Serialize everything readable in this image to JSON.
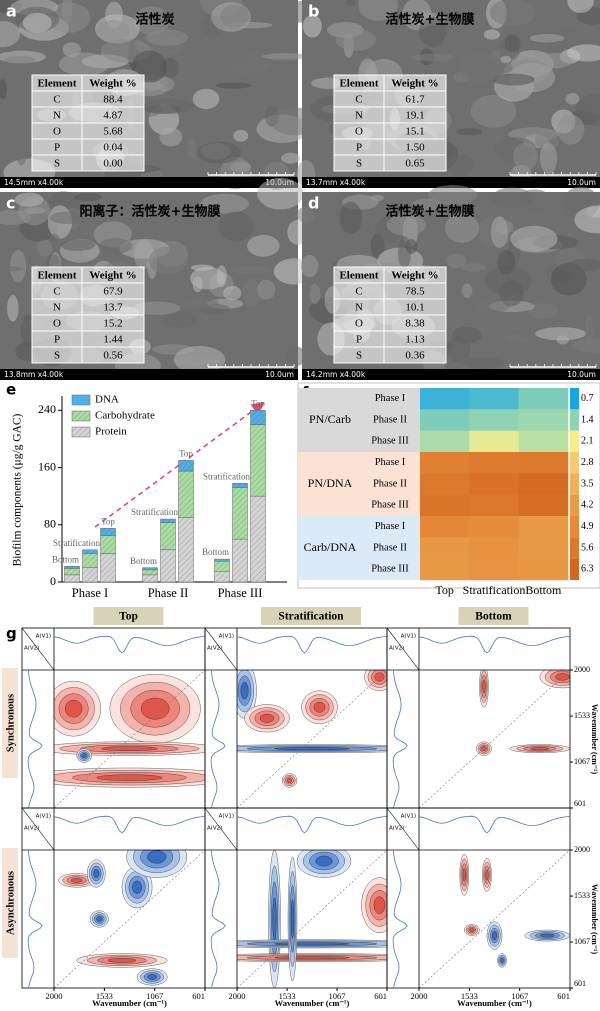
{
  "sem_panels": [
    {
      "label": "a",
      "title": "活性炭",
      "table": {
        "header": [
          "Element",
          "Weight %"
        ],
        "rows": [
          [
            "C",
            "88.4"
          ],
          [
            "N",
            "4.87"
          ],
          [
            "O",
            "5.68"
          ],
          [
            "P",
            "0.04"
          ],
          [
            "S",
            "0.00"
          ]
        ]
      },
      "info": "14.5mm x4.00k",
      "scale": "10.0um"
    },
    {
      "label": "b",
      "title": "活性炭+生物膜",
      "table": {
        "header": [
          "Element",
          "Weight %"
        ],
        "rows": [
          [
            "C",
            "61.7"
          ],
          [
            "N",
            "19.1"
          ],
          [
            "O",
            "15.1"
          ],
          [
            "P",
            "1.50"
          ],
          [
            "S",
            "0.65"
          ]
        ]
      },
      "info": "13.7mm x4.00k",
      "scale": "10.0um"
    },
    {
      "label": "c",
      "title": "阳离子：活性炭+生物膜",
      "table": {
        "header": [
          "Element",
          "Weight %"
        ],
        "rows": [
          [
            "C",
            "67.9"
          ],
          [
            "N",
            "13.7"
          ],
          [
            "O",
            "15.2"
          ],
          [
            "P",
            "1.44"
          ],
          [
            "S",
            "0.56"
          ]
        ]
      },
      "info": "13.8mm x4.00k",
      "scale": "10.0um"
    },
    {
      "label": "d",
      "title": "活性炭+生物膜",
      "table": {
        "header": [
          "Element",
          "Weight %"
        ],
        "rows": [
          [
            "C",
            "78.5"
          ],
          [
            "N",
            "10.1"
          ],
          [
            "O",
            "8.38"
          ],
          [
            "P",
            "1.13"
          ],
          [
            "S",
            "0.36"
          ]
        ]
      },
      "info": "14.2mm x4.00k",
      "scale": "10.0um"
    }
  ],
  "chart_data": [
    {
      "type": "bar",
      "panel": "e",
      "y_label": "Biofilm components (μg/g GAC)",
      "categories": [
        "Phase I",
        "Phase II",
        "Phase III"
      ],
      "groups": [
        "Bottom",
        "Stratification",
        "Top"
      ],
      "series": [
        {
          "name": "DNA",
          "color": "#4fb0e8",
          "values": [
            [
              3,
              5,
              10
            ],
            [
              3,
              5,
              15
            ],
            [
              3,
              6,
              20
            ]
          ]
        },
        {
          "name": "Carbohydrate",
          "color": "#a9dca0",
          "values": [
            [
              9,
              20,
              25
            ],
            [
              7,
              38,
              65
            ],
            [
              14,
              72,
              100
            ]
          ]
        },
        {
          "name": "Protein",
          "color": "#d4d4d4",
          "values": [
            [
              10,
              20,
              40
            ],
            [
              10,
              45,
              90
            ],
            [
              15,
              60,
              120
            ]
          ]
        }
      ],
      "stacked": true,
      "ylim": [
        0,
        260
      ],
      "yticks": [
        0,
        80,
        160,
        240
      ]
    },
    {
      "type": "heatmap",
      "panel": "f",
      "groups": [
        "PN/Carb",
        "PN/DNA",
        "Carb/DNA"
      ],
      "group_colors": [
        "#d9d9d9",
        "#fbe2d5",
        "#dce9f6"
      ],
      "rows": [
        "Phase I",
        "Phase II",
        "Phase III"
      ],
      "columns": [
        "Top",
        "Stratification",
        "Bottom"
      ],
      "values": [
        [
          0.9,
          1.0,
          1.3
        ],
        [
          1.3,
          1.4,
          1.5
        ],
        [
          1.6,
          2.0,
          1.7
        ],
        [
          5.3,
          5.5,
          5.6
        ],
        [
          5.6,
          5.9,
          6.2
        ],
        [
          5.8,
          5.7,
          6.0
        ],
        [
          5.0,
          4.8,
          4.3
        ],
        [
          4.4,
          4.6,
          4.3
        ],
        [
          4.3,
          4.5,
          4.4
        ]
      ],
      "colorbar": {
        "ticks": [
          0.7,
          1.4,
          2.1,
          2.8,
          3.5,
          4.2,
          4.9,
          5.6,
          6.3
        ],
        "colors": [
          "#1ba6e3",
          "#8fd3b4",
          "#f4ee8c",
          "#f3cb78",
          "#eeb25c",
          "#e99c48",
          "#e48a39",
          "#dd792d",
          "#d36620"
        ]
      }
    }
  ],
  "contour_panel": {
    "label": "g",
    "columns": [
      "Top",
      "Stratification",
      "Bottom"
    ],
    "rows": [
      "Synchronous",
      "Asynchronous"
    ],
    "spectrum_labels": [
      "A(V1)",
      "A(V2)"
    ],
    "x_label": "Wavenumber (cm⁻¹)",
    "y_label": "Wavenumber (cm⁻¹)",
    "ticks": [
      2000,
      1533,
      1067,
      601
    ]
  }
}
